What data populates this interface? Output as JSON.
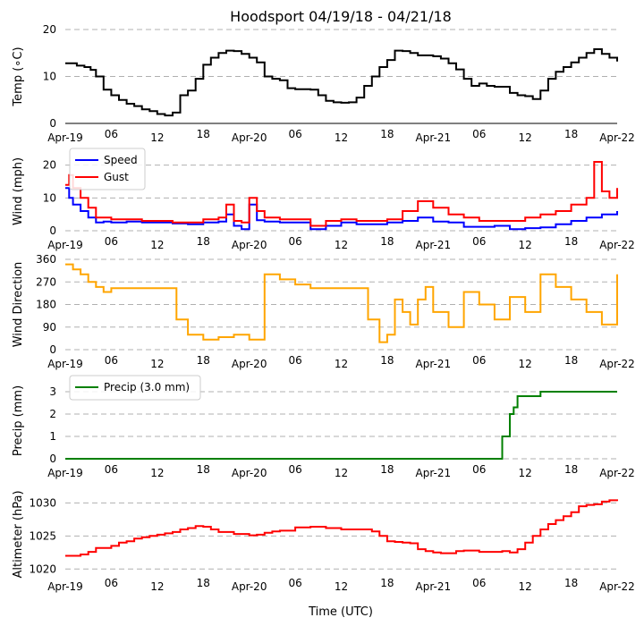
{
  "chart_data": {
    "type": "line",
    "title": "Hoodsport 04/19/18 - 04/21/18",
    "xlabel": "Time (UTC)",
    "x_ticks": [
      "Apr-19",
      "06",
      "12",
      "18",
      "Apr-20",
      "06",
      "12",
      "18",
      "Apr-21",
      "06",
      "12",
      "18",
      "Apr-22"
    ],
    "x_range_hours": [
      0,
      72
    ],
    "panels": [
      {
        "id": "temp",
        "ylabel": "Temp (∘C)",
        "ylim": [
          0,
          20
        ],
        "yticks": [
          0,
          10,
          20
        ],
        "series": [
          {
            "name": "Temp",
            "color": "#000000",
            "style": "line",
            "x": [
              0,
              0.8,
              1.5,
              2.5,
              3.3,
              4,
              5,
              6,
              7,
              8,
              9,
              10,
              11,
              12,
              13,
              13.5,
              14,
              15,
              16,
              17,
              18,
              19,
              20,
              21,
              22,
              23,
              24,
              25,
              26,
              27,
              28,
              29,
              30,
              31,
              32,
              33,
              34,
              35,
              36,
              37,
              38,
              39,
              40,
              41,
              42,
              43,
              44,
              45,
              46,
              47,
              48,
              49,
              50,
              51,
              52,
              53,
              54,
              55,
              56,
              57,
              58,
              59,
              60,
              61,
              62,
              63,
              64,
              65,
              66,
              67,
              68,
              69,
              70,
              71,
              72
            ],
            "y": [
              12.8,
              12.8,
              12.3,
              12.0,
              11.4,
              10.0,
              7.2,
              6.0,
              5.0,
              4.2,
              3.7,
              3.0,
              2.6,
              2.0,
              1.7,
              1.7,
              2.3,
              6.0,
              7.0,
              9.5,
              12.5,
              14.0,
              15.0,
              15.5,
              15.4,
              14.8,
              14.0,
              13.0,
              10.0,
              9.5,
              9.2,
              7.5,
              7.3,
              7.3,
              7.2,
              6.0,
              4.8,
              4.5,
              4.4,
              4.5,
              5.5,
              8.0,
              10.0,
              12.0,
              13.5,
              15.5,
              15.4,
              15.0,
              14.5,
              14.5,
              14.3,
              13.8,
              12.8,
              11.5,
              9.5,
              8.0,
              8.5,
              8.0,
              7.8,
              7.8,
              6.5,
              6.0,
              5.8,
              5.2,
              7.0,
              9.5,
              11.0,
              12.0,
              13.0,
              14.0,
              15.0,
              15.8,
              14.8,
              14.0,
              13.2
            ]
          }
        ]
      },
      {
        "id": "wind",
        "ylabel": "Wind (mph)",
        "ylim": [
          0,
          24
        ],
        "yticks": [
          0,
          10,
          20
        ],
        "legend": "top-left",
        "series": [
          {
            "name": "Speed",
            "color": "#0000ff",
            "style": "line",
            "x": [
              0,
              0.5,
              1,
              2,
              3,
              4,
              5,
              6,
              8,
              10,
              12,
              14,
              16,
              18,
              20,
              21,
              22,
              23,
              24,
              25,
              26,
              28,
              30,
              32,
              34,
              36,
              38,
              40,
              42,
              44,
              46,
              48,
              50,
              52,
              54,
              56,
              58,
              60,
              62,
              64,
              66,
              68,
              70,
              72
            ],
            "y": [
              13,
              10,
              8,
              6,
              4,
              2.5,
              2.8,
              2.5,
              2.8,
              2.5,
              2.5,
              2.2,
              2,
              2.5,
              2.8,
              5,
              1.5,
              0.5,
              8,
              3.2,
              2.8,
              2.5,
              2.5,
              0.5,
              1.5,
              2.5,
              2,
              2,
              2.5,
              3,
              4,
              2.8,
              2.5,
              1.2,
              1.2,
              1.5,
              0.5,
              0.8,
              1,
              2,
              3,
              4,
              5,
              6
            ]
          },
          {
            "name": "Gust",
            "color": "#ff0000",
            "style": "line",
            "x": [
              0,
              0.5,
              1,
              2,
              3,
              4,
              5,
              6,
              8,
              10,
              12,
              14,
              16,
              18,
              20,
              21,
              22,
              23,
              24,
              25,
              26,
              28,
              30,
              32,
              34,
              36,
              38,
              40,
              42,
              44,
              46,
              48,
              50,
              52,
              54,
              56,
              58,
              60,
              62,
              64,
              66,
              68,
              69,
              70,
              71,
              72
            ],
            "y": [
              14,
              17,
              13,
              10,
              7,
              4,
              4,
              3.5,
              3.5,
              3,
              3,
              2.5,
              2.5,
              3.5,
              4,
              8,
              3,
              2.5,
              10,
              6,
              4,
              3.5,
              3.5,
              1.5,
              3,
              3.5,
              3,
              3,
              3.5,
              6,
              9,
              7,
              5,
              4,
              3,
              3,
              3,
              4,
              5,
              6,
              8,
              10,
              21,
              12,
              10,
              13
            ]
          }
        ]
      },
      {
        "id": "direction",
        "ylabel": "Wind Direction",
        "ylim": [
          0,
          360
        ],
        "yticks": [
          0,
          90,
          180,
          270,
          360
        ],
        "series": [
          {
            "name": "Direction",
            "color": "#ffa500",
            "style": "line",
            "x": [
              0,
              1,
              2,
              3,
              4,
              5,
              6,
              8,
              10,
              12,
              14,
              14.5,
              16,
              18,
              20,
              22,
              24,
              26,
              28,
              30,
              32,
              34,
              36,
              38,
              39.5,
              41,
              42,
              43,
              44,
              45,
              46,
              47,
              48,
              50,
              52,
              54,
              56,
              58,
              60,
              62,
              64,
              66,
              68,
              70,
              72
            ],
            "y": [
              340,
              320,
              300,
              270,
              250,
              230,
              245,
              245,
              245,
              245,
              245,
              120,
              60,
              40,
              50,
              60,
              40,
              300,
              280,
              260,
              245,
              245,
              245,
              245,
              120,
              30,
              60,
              200,
              150,
              100,
              200,
              250,
              150,
              90,
              230,
              180,
              120,
              210,
              150,
              300,
              250,
              200,
              150,
              100,
              300
            ]
          }
        ]
      },
      {
        "id": "precip",
        "ylabel": "Precip (mm)",
        "ylim": [
          0,
          3.4
        ],
        "yticks": [
          0,
          1,
          2,
          3
        ],
        "legend": "top-left",
        "series": [
          {
            "name": "Precip (3.0 mm)",
            "color": "#008000",
            "style": "line",
            "x": [
              0,
              55,
              56,
              57,
              58,
              58.5,
              59,
              60,
              61,
              62,
              63,
              64,
              66,
              68,
              70,
              72
            ],
            "y": [
              0,
              0,
              0,
              1.0,
              2.0,
              2.3,
              2.8,
              2.8,
              2.8,
              3.0,
              3.0,
              3.0,
              3.0,
              3.0,
              3.0,
              3.0
            ]
          }
        ]
      },
      {
        "id": "altimeter",
        "ylabel": "Altimeter (hPa)",
        "ylim": [
          1019.5,
          1031
        ],
        "yticks": [
          1020,
          1025,
          1030
        ],
        "series": [
          {
            "name": "Altimeter",
            "color": "#ff0000",
            "style": "line",
            "x": [
              0,
              2,
              3,
              4,
              6,
              7,
              8,
              9,
              10,
              11,
              12,
              13,
              14,
              15,
              16,
              17,
              18,
              19,
              20,
              22,
              24,
              25,
              26,
              27,
              28,
              30,
              32,
              34,
              36,
              38,
              40,
              41,
              42,
              43,
              44,
              45,
              46,
              47,
              48,
              49,
              50,
              51,
              52,
              53,
              54,
              55,
              56,
              57,
              58,
              59,
              60,
              61,
              62,
              63,
              64,
              65,
              66,
              67,
              68,
              69,
              70,
              71,
              72
            ],
            "y": [
              1022.0,
              1022.2,
              1022.6,
              1023.2,
              1023.5,
              1024.0,
              1024.2,
              1024.6,
              1024.8,
              1025.0,
              1025.2,
              1025.4,
              1025.6,
              1026.0,
              1026.2,
              1026.5,
              1026.4,
              1026.0,
              1025.6,
              1025.3,
              1025.1,
              1025.2,
              1025.5,
              1025.7,
              1025.8,
              1026.3,
              1026.4,
              1026.2,
              1026.0,
              1026.0,
              1025.7,
              1025.0,
              1024.2,
              1024.1,
              1024.0,
              1023.9,
              1023.0,
              1022.7,
              1022.5,
              1022.4,
              1022.4,
              1022.7,
              1022.8,
              1022.8,
              1022.6,
              1022.6,
              1022.6,
              1022.7,
              1022.5,
              1023.0,
              1024.0,
              1025.0,
              1026.0,
              1026.8,
              1027.4,
              1028.0,
              1028.6,
              1029.5,
              1029.7,
              1029.8,
              1030.2,
              1030.4,
              1030.3
            ]
          }
        ]
      }
    ]
  }
}
